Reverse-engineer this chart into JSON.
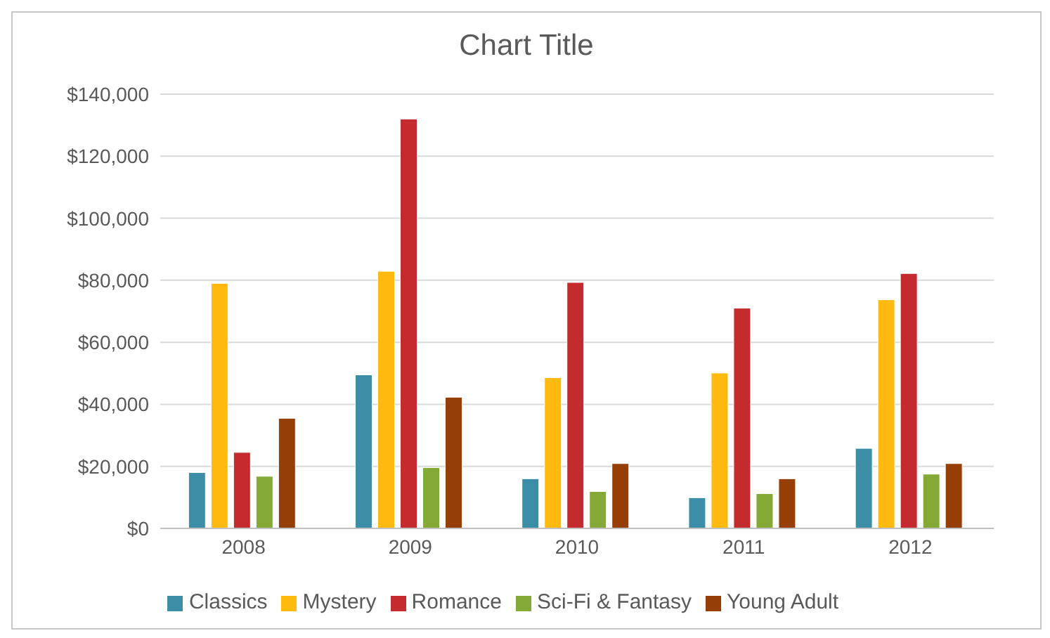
{
  "chart_data": {
    "type": "bar",
    "title": "Chart Title",
    "categories": [
      "2008",
      "2009",
      "2010",
      "2011",
      "2012"
    ],
    "series": [
      {
        "name": "Classics",
        "color": "#3b8ea5",
        "values": [
          18000,
          49500,
          16000,
          9900,
          25800
        ]
      },
      {
        "name": "Mystery",
        "color": "#ffb90f",
        "values": [
          79000,
          82900,
          48600,
          50100,
          73700
        ]
      },
      {
        "name": "Romance",
        "color": "#c32b2e",
        "values": [
          24500,
          132000,
          79300,
          71000,
          82200
        ]
      },
      {
        "name": "Sci-Fi & Fantasy",
        "color": "#84a936",
        "values": [
          16800,
          19600,
          11900,
          11200,
          17500
        ]
      },
      {
        "name": "Young Adult",
        "color": "#953f07",
        "values": [
          35500,
          42300,
          20900,
          16000,
          20900
        ]
      }
    ],
    "ylim": [
      0,
      140000
    ],
    "yticks": [
      {
        "value": 0,
        "label": "$0"
      },
      {
        "value": 20000,
        "label": "$20,000"
      },
      {
        "value": 40000,
        "label": "$40,000"
      },
      {
        "value": 60000,
        "label": "$60,000"
      },
      {
        "value": 80000,
        "label": "$80,000"
      },
      {
        "value": 100000,
        "label": "$100,000"
      },
      {
        "value": 120000,
        "label": "$120,000"
      },
      {
        "value": 140000,
        "label": "$140,000"
      }
    ],
    "grid": "y",
    "legend": "bottom"
  }
}
